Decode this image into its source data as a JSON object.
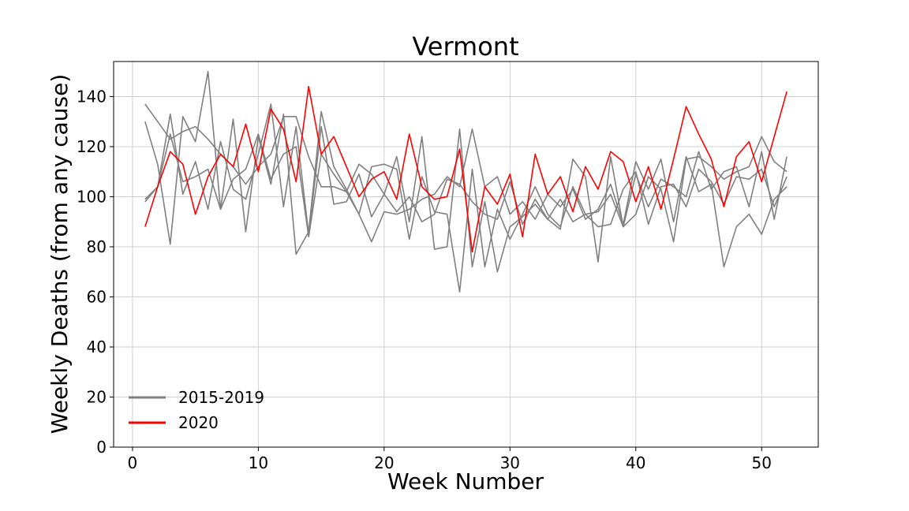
{
  "chart_data": {
    "type": "line",
    "title": "Vermont",
    "xlabel": "Week Number",
    "ylabel": "Weekly Deaths (from any cause)",
    "xlim": [
      -1.5,
      54.5
    ],
    "ylim": [
      0,
      154
    ],
    "xticks": [
      0,
      10,
      20,
      30,
      40,
      50
    ],
    "yticks": [
      0,
      20,
      40,
      60,
      80,
      100,
      120,
      140
    ],
    "grid": true,
    "legend_position": "lower-left",
    "legend": [
      {
        "label": "2015-2019",
        "color": "#808080"
      },
      {
        "label": "2020",
        "color": "#ff0000"
      }
    ],
    "series": [
      {
        "group": "2015-2019",
        "color": "#808080",
        "values": [
          137,
          130,
          123,
          126,
          128,
          123,
          117,
          112,
          105,
          112,
          117,
          132,
          132,
          116,
          104,
          104,
          102,
          113,
          109,
          101,
          94,
          100,
          90,
          93,
          107,
          105,
          98,
          93,
          91,
          106,
          89,
          99,
          91,
          99,
          90,
          93,
          94,
          101,
          88,
          93,
          108,
          103,
          82,
          115,
          116,
          112,
          107,
          110,
          112,
          124,
          114,
          110
        ]
      },
      {
        "group": "2015-2019",
        "color": "#808080",
        "values": [
          130,
          113,
          81,
          132,
          122,
          150,
          95,
          131,
          86,
          124,
          105,
          133,
          77,
          86,
          134,
          112,
          103,
          93,
          82,
          94,
          93,
          95,
          99,
          101,
          108,
          104,
          127,
          104,
          108,
          93,
          98,
          91,
          101,
          96,
          103,
          91,
          95,
          105,
          89,
          114,
          103,
          115,
          90,
          116,
          102,
          105,
          72,
          88,
          93,
          85,
          99,
          104
        ]
      },
      {
        "group": "2015-2019",
        "color": "#808080",
        "values": [
          99,
          104,
          133,
          101,
          114,
          95,
          122,
          103,
          99,
          117,
          137,
          96,
          128,
          85,
          128,
          97,
          98,
          109,
          92,
          101,
          116,
          90,
          124,
          79,
          80,
          127,
          72,
          98,
          70,
          88,
          92,
          97,
          91,
          87,
          115,
          108,
          74,
          116,
          88,
          109,
          96,
          107,
          104,
          100,
          118,
          103,
          110,
          112,
          96,
          118,
          91,
          116
        ]
      },
      {
        "group": "2015-2019",
        "color": "#808080",
        "values": [
          98,
          104,
          125,
          106,
          108,
          111,
          95,
          107,
          111,
          125,
          107,
          117,
          120,
          84,
          117,
          109,
          102,
          93,
          112,
          113,
          111,
          83,
          108,
          94,
          93,
          62,
          111,
          72,
          95,
          83,
          93,
          104,
          93,
          88,
          104,
          93,
          88,
          89,
          103,
          110,
          89,
          104,
          105,
          96,
          111,
          106,
          97,
          108,
          107,
          111,
          96,
          108
        ]
      },
      {
        "group": "2020",
        "color": "#ff0000",
        "values": [
          88,
          104,
          118,
          113,
          93,
          108,
          117,
          112,
          129,
          110,
          135,
          127,
          106,
          144,
          117,
          124,
          112,
          100,
          107,
          110,
          99,
          125,
          104,
          99,
          100,
          119,
          78,
          104,
          97,
          109,
          84,
          117,
          101,
          108,
          94,
          112,
          103,
          118,
          114,
          98,
          112,
          95,
          115,
          136,
          125,
          115,
          96,
          116,
          122,
          106,
          124,
          142
        ]
      }
    ]
  }
}
